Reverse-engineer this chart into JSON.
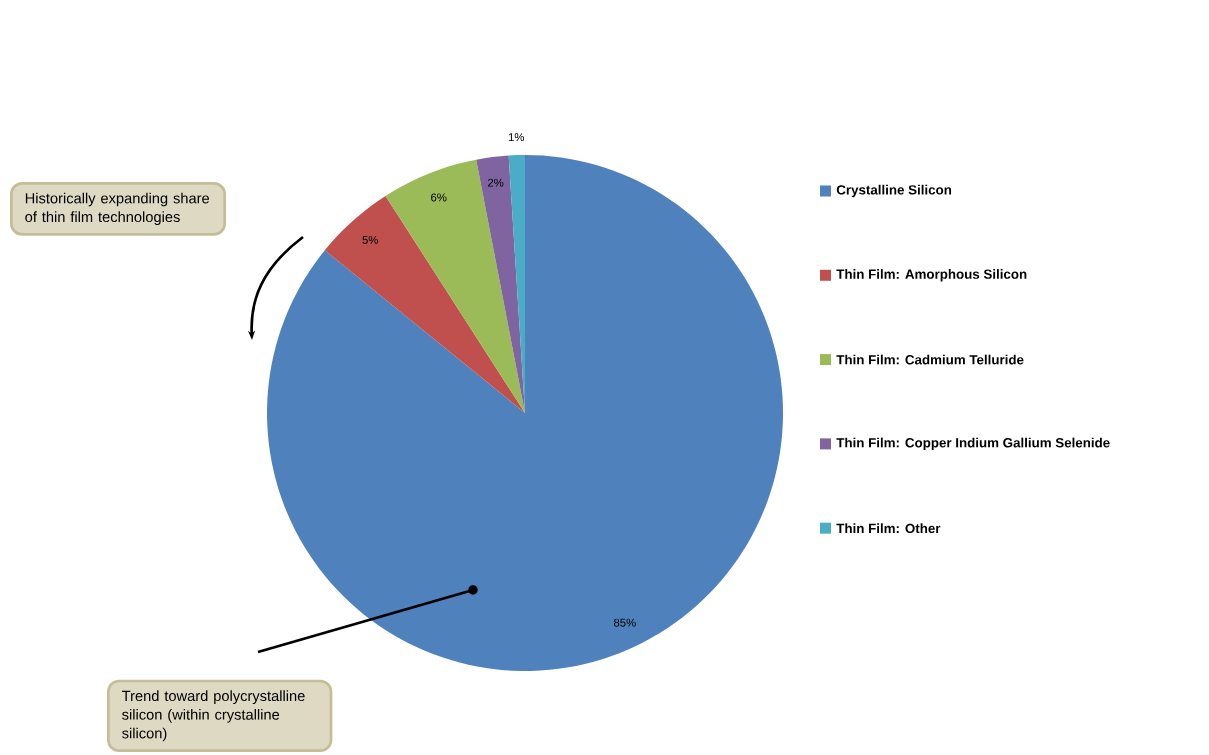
{
  "chart_data": {
    "type": "pie",
    "categories": [
      "Crystalline Silicon",
      "Thin Film: Amorphous Silicon",
      "Thin Film: Cadmium Telluride",
      "Thin Film: Copper Indium Gallium Selenide",
      "Thin Film: Other"
    ],
    "values": [
      85,
      5,
      6,
      2,
      1
    ],
    "colors": [
      "#4f81bd",
      "#c0504d",
      "#9bbb59",
      "#8064a2",
      "#4bacc6"
    ],
    "value_labels": [
      "85%",
      "5%",
      "6%",
      "2%",
      "1%"
    ],
    "legend": "right",
    "annotations": [
      "Historically expanding share of thin film technologies",
      "Trend toward polycrystalline silicon (within crystalline silicon)"
    ]
  }
}
